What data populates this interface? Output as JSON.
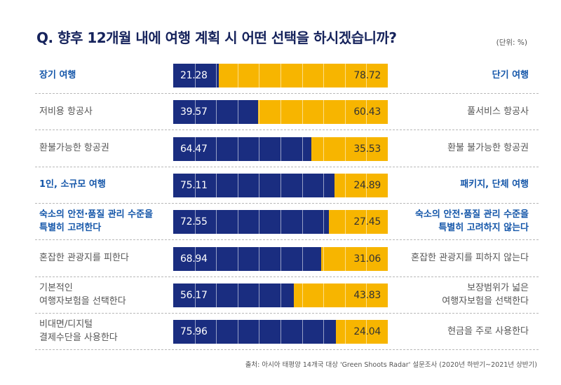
{
  "header": {
    "title": "Q. 향후 12개월 내에 여행 계획 시 어떤 선택을 하시겠습니까?",
    "unit": "(단위: %)"
  },
  "footer": {
    "source": "출처: 아시아 태평양 14개국 대상 'Green Shoots Radar' 설문조사 (2020년 하반기~2021년 상반기)"
  },
  "colors": {
    "left_series": "#1a2d80",
    "right_series": "#f7b500",
    "highlight_text": "#1456a9"
  },
  "chart_data": {
    "type": "bar",
    "orientation": "horizontal-stacked-100",
    "categories": [
      "장기 여행 / 단기 여행",
      "저비용 항공사 / 풀서비스 항공사",
      "환불가능한 항공권 / 환불 불가능한 항공권",
      "1인, 소규모 여행 / 패키지, 단체 여행",
      "숙소의 안전·품질 관리 수준을 특별히 고려한다 / 숙소의 안전·품질 관리 수준을 특별히 고려하지 않는다",
      "혼잡한 관광지를 피한다 / 혼잡한 관광지를 피하지 않는다",
      "기본적인 여행자보험을 선택한다 / 보장범위가 넓은 여행자보험을 선택한다",
      "비대면/디지털 결제수단을 사용한다 / 현금을 주로 사용한다"
    ],
    "rows": [
      {
        "left_label": "장기 여행",
        "right_label": "단기 여행",
        "left": 21.28,
        "right": 78.72,
        "highlight": true
      },
      {
        "left_label": "저비용 항공사",
        "right_label": "풀서비스 항공사",
        "left": 39.57,
        "right": 60.43,
        "highlight": false
      },
      {
        "left_label": "환불가능한 항공권",
        "right_label": "환불 불가능한 항공권",
        "left": 64.47,
        "right": 35.53,
        "highlight": false
      },
      {
        "left_label": "1인, 소규모 여행",
        "right_label": "패키지, 단체 여행",
        "left": 75.11,
        "right": 24.89,
        "highlight": true
      },
      {
        "left_label": "숙소의 안전·품질 관리 수준을\n특별히 고려한다",
        "right_label": "숙소의 안전·품질 관리 수준을\n특별히 고려하지 않는다",
        "left": 72.55,
        "right": 27.45,
        "highlight": true
      },
      {
        "left_label": "혼잡한 관광지를 피한다",
        "right_label": "혼잡한 관광지를 피하지 않는다",
        "left": 68.94,
        "right": 31.06,
        "highlight": false
      },
      {
        "left_label": "기본적인\n여행자보험을 선택한다",
        "right_label": "보장범위가 넓은\n여행자보험을 선택한다",
        "left": 56.17,
        "right": 43.83,
        "highlight": false
      },
      {
        "left_label": "비대면/디지털\n결제수단을 사용한다",
        "right_label": "현금을 주로 사용한다",
        "left": 75.96,
        "right": 24.04,
        "highlight": false
      }
    ],
    "xlim": [
      0,
      100
    ],
    "grid": true,
    "title": "Q. 향후 12개월 내에 여행 계획 시 어떤 선택을 하시겠습니까?"
  }
}
